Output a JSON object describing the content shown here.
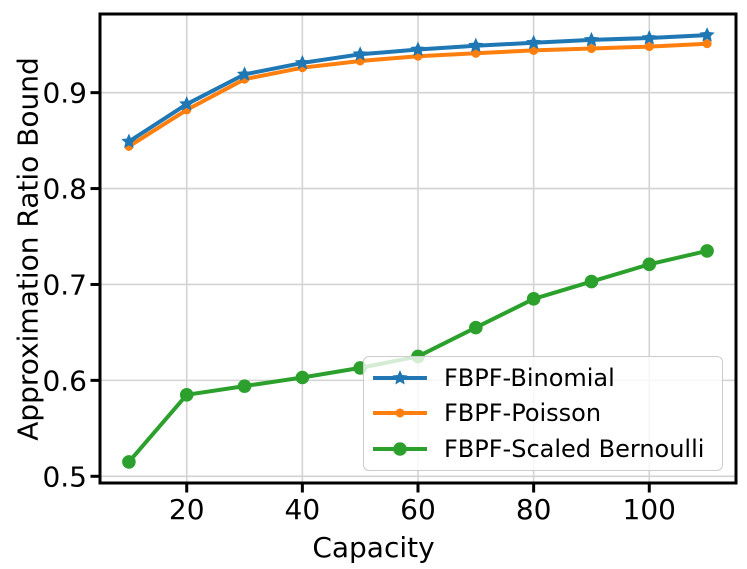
{
  "chart_data": {
    "type": "line",
    "title": "",
    "xlabel": "Capacity",
    "ylabel": "Approximation Ratio Bound",
    "x": [
      10,
      20,
      30,
      40,
      50,
      60,
      70,
      80,
      90,
      100,
      110
    ],
    "series": [
      {
        "name": "FBPF-Binomial",
        "color": "#1f77b4",
        "marker": "star",
        "values": [
          0.849,
          0.888,
          0.919,
          0.931,
          0.94,
          0.945,
          0.949,
          0.952,
          0.955,
          0.957,
          0.96
        ]
      },
      {
        "name": "FBPF-Poisson",
        "color": "#ff7f0e",
        "marker": "circle-small",
        "values": [
          0.844,
          0.882,
          0.914,
          0.926,
          0.933,
          0.938,
          0.941,
          0.944,
          0.946,
          0.948,
          0.951
        ]
      },
      {
        "name": "FBPF-Scaled Bernoulli",
        "color": "#2ca02c",
        "marker": "circle-large",
        "values": [
          0.515,
          0.585,
          0.594,
          0.603,
          0.613,
          0.625,
          0.655,
          0.685,
          0.703,
          0.721,
          0.735
        ]
      }
    ],
    "xlim": [
      5,
      115
    ],
    "ylim": [
      0.493,
      0.982
    ],
    "xticks": [
      20,
      40,
      60,
      80,
      100
    ],
    "xtick_labels": [
      "20",
      "40",
      "60",
      "80",
      "100"
    ],
    "yticks": [
      0.5,
      0.6,
      0.7,
      0.8,
      0.9
    ],
    "ytick_labels": [
      "0.5",
      "0.6",
      "0.7",
      "0.8",
      "0.9"
    ],
    "grid": true,
    "legend_position": "lower right",
    "style": {
      "grid_color": "#d3d3d3",
      "spine_color": "#000000",
      "text_color": "#000000",
      "background": "#ffffff"
    }
  }
}
